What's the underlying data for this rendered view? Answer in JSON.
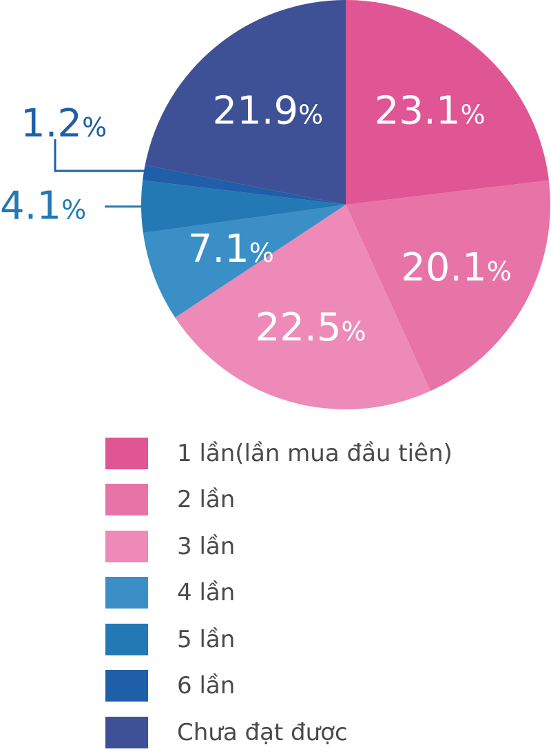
{
  "chart_data": {
    "type": "pie",
    "start_angle_deg": 0,
    "direction": "clockwise",
    "categories": [
      "1 lần(lần mua đầu tiên)",
      "2 lần",
      "3 lần",
      "4 lần",
      "5 lần",
      "6 lần",
      "Chưa đạt được"
    ],
    "values": [
      23.1,
      20.1,
      22.5,
      7.1,
      4.1,
      1.2,
      21.9
    ],
    "labels": [
      "23.1",
      "20.1",
      "22.5",
      "7.1",
      "4.1",
      "1.2",
      "21.9"
    ],
    "percent_sign": "%",
    "colors": [
      "#e05594",
      "#e873a7",
      "#ed8ab8",
      "#3a8fc6",
      "#2279b4",
      "#1f5ea8",
      "#3f5196"
    ],
    "label_colors": [
      "#ffffff",
      "#ffffff",
      "#ffffff",
      "#ffffff",
      "#2279b4",
      "#1f5ea8",
      "#ffffff"
    ],
    "outside_labels": [
      false,
      false,
      false,
      false,
      true,
      true,
      false
    ],
    "legend_placement": "bottom"
  }
}
